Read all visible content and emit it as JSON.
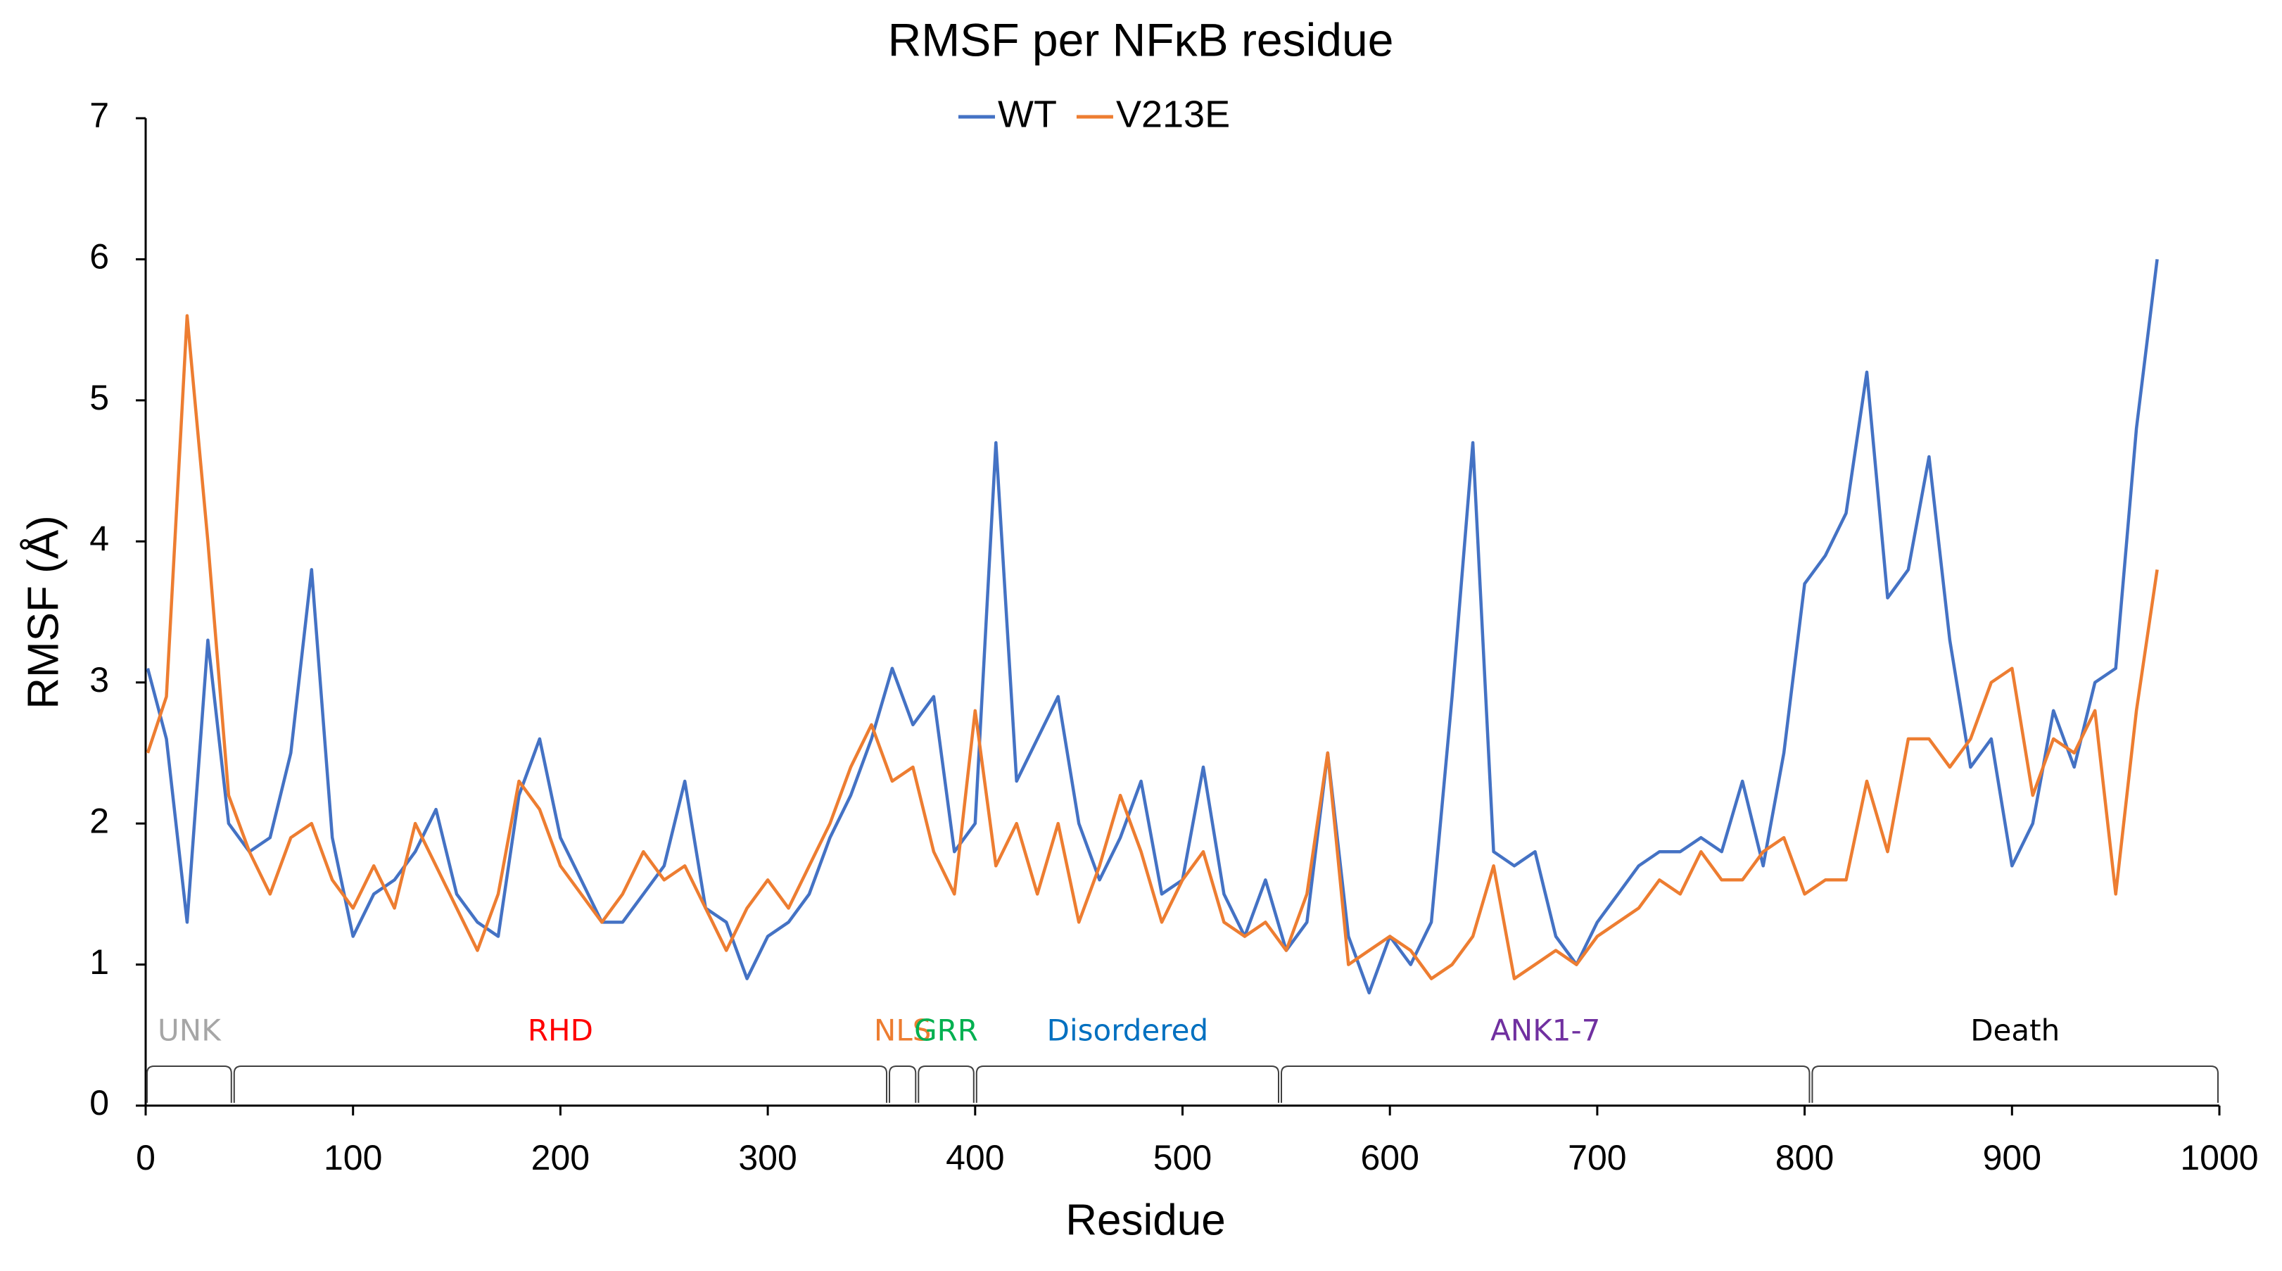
{
  "chart_data": {
    "type": "line",
    "title": "RMSF per NFκB residue",
    "x_label": "Residue",
    "y_label": "RMSF (Å)",
    "legend": "top",
    "grid": false,
    "xlim": [
      0,
      1000
    ],
    "xticks": [
      0,
      100,
      200,
      300,
      400,
      500,
      600,
      700,
      800,
      900,
      1000
    ],
    "ylim": [
      0,
      7
    ],
    "yticks": [
      0,
      1,
      2,
      3,
      4,
      5,
      6,
      7
    ],
    "x": [
      1,
      10,
      20,
      30,
      40,
      50,
      60,
      70,
      80,
      90,
      100,
      110,
      120,
      130,
      140,
      150,
      160,
      170,
      180,
      190,
      200,
      210,
      220,
      230,
      240,
      250,
      260,
      270,
      280,
      290,
      300,
      310,
      320,
      330,
      340,
      350,
      360,
      370,
      380,
      390,
      400,
      410,
      420,
      430,
      440,
      450,
      460,
      470,
      480,
      490,
      500,
      510,
      520,
      530,
      540,
      550,
      560,
      570,
      580,
      590,
      600,
      610,
      620,
      630,
      640,
      650,
      660,
      670,
      680,
      690,
      700,
      710,
      720,
      730,
      740,
      750,
      760,
      770,
      780,
      790,
      800,
      810,
      820,
      830,
      840,
      850,
      860,
      870,
      880,
      890,
      900,
      910,
      920,
      930,
      940,
      950,
      960,
      970
    ],
    "series": [
      {
        "name": "WT",
        "color": "#4472c4",
        "values": [
          3.1,
          2.6,
          1.3,
          3.3,
          2.0,
          1.8,
          1.9,
          2.5,
          3.8,
          1.9,
          1.2,
          1.5,
          1.6,
          1.8,
          2.1,
          1.5,
          1.3,
          1.2,
          2.2,
          2.6,
          1.9,
          1.6,
          1.3,
          1.3,
          1.5,
          1.7,
          2.3,
          1.4,
          1.3,
          0.9,
          1.2,
          1.3,
          1.5,
          1.9,
          2.2,
          2.6,
          3.1,
          2.7,
          2.9,
          1.8,
          2.0,
          4.7,
          2.3,
          2.6,
          2.9,
          2.0,
          1.6,
          1.9,
          2.3,
          1.5,
          1.6,
          2.4,
          1.5,
          1.2,
          1.6,
          1.1,
          1.3,
          2.5,
          1.2,
          0.8,
          1.2,
          1.0,
          1.3,
          2.9,
          4.7,
          1.8,
          1.7,
          1.8,
          1.2,
          1.0,
          1.3,
          1.5,
          1.7,
          1.8,
          1.8,
          1.9,
          1.8,
          2.3,
          1.7,
          2.5,
          3.7,
          3.9,
          4.2,
          5.2,
          3.6,
          3.8,
          4.6,
          3.3,
          2.4,
          2.6,
          1.7,
          2.0,
          2.8,
          2.4,
          3.0,
          3.1,
          4.8,
          6.0
        ]
      },
      {
        "name": "V213E",
        "color": "#ed7d31",
        "values": [
          2.5,
          2.9,
          5.6,
          4.0,
          2.2,
          1.8,
          1.5,
          1.9,
          2.0,
          1.6,
          1.4,
          1.7,
          1.4,
          2.0,
          1.7,
          1.4,
          1.1,
          1.5,
          2.3,
          2.1,
          1.7,
          1.5,
          1.3,
          1.5,
          1.8,
          1.6,
          1.7,
          1.4,
          1.1,
          1.4,
          1.6,
          1.4,
          1.7,
          2.0,
          2.4,
          2.7,
          2.3,
          2.4,
          1.8,
          1.5,
          2.8,
          1.7,
          2.0,
          1.5,
          2.0,
          1.3,
          1.7,
          2.2,
          1.8,
          1.3,
          1.6,
          1.8,
          1.3,
          1.2,
          1.3,
          1.1,
          1.5,
          2.5,
          1.0,
          1.1,
          1.2,
          1.1,
          0.9,
          1.0,
          1.2,
          1.7,
          0.9,
          1.0,
          1.1,
          1.0,
          1.2,
          1.3,
          1.4,
          1.6,
          1.5,
          1.8,
          1.6,
          1.6,
          1.8,
          1.9,
          1.5,
          1.6,
          1.6,
          2.3,
          1.8,
          2.6,
          2.6,
          2.4,
          2.6,
          3.0,
          3.1,
          2.2,
          2.6,
          2.5,
          2.8,
          1.5,
          2.8,
          3.8
        ]
      }
    ],
    "domains": [
      {
        "label": "UNK",
        "color": "#a6a6a6",
        "start": 0,
        "end": 42
      },
      {
        "label": "RHD",
        "color": "#ff0000",
        "start": 42,
        "end": 358
      },
      {
        "label": "NLS",
        "color": "#ed7d31",
        "start": 358,
        "end": 372
      },
      {
        "label": "GRR",
        "color": "#00b050",
        "start": 372,
        "end": 400
      },
      {
        "label": "Disordered",
        "color": "#0070c0",
        "start": 400,
        "end": 547
      },
      {
        "label": "ANK1-7",
        "color": "#7030a0",
        "start": 547,
        "end": 803
      },
      {
        "label": "Death",
        "color": "#000000",
        "start": 803,
        "end": 1000
      }
    ]
  }
}
